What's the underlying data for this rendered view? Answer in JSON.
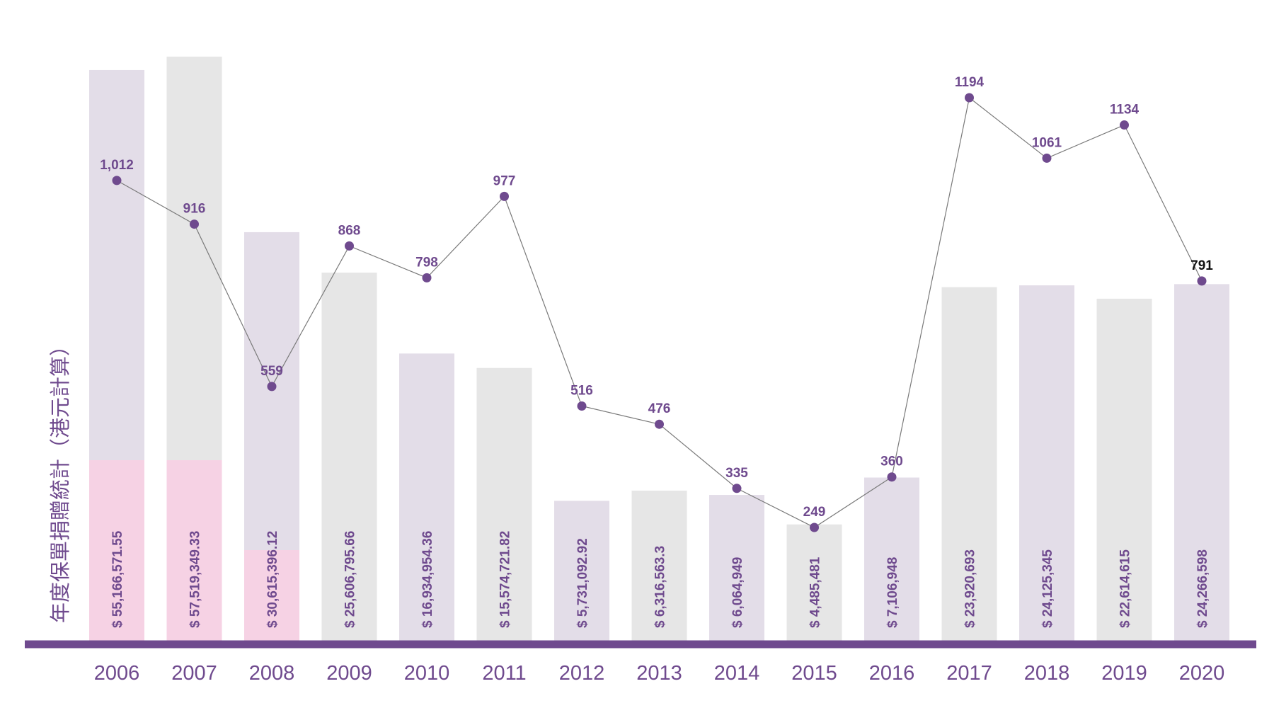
{
  "chart_data": {
    "type": "bar",
    "ylabel": "年度保單捐贈統計（港元計算）",
    "categories": [
      "2006",
      "2007",
      "2008",
      "2009",
      "2010",
      "2011",
      "2012",
      "2013",
      "2014",
      "2015",
      "2016",
      "2017",
      "2018",
      "2019",
      "2020"
    ],
    "series": [
      {
        "type": "bar",
        "values": [
          55166571.55,
          57519349.33,
          30615396.12,
          25606795.66,
          16934954.36,
          15574721.82,
          5731092.92,
          6316563.3,
          6064949,
          4485481,
          7106948,
          23920693,
          24125345,
          22614615,
          24266598
        ],
        "labels": [
          "$ 55,166,571.55",
          "$ 57,519,349.33",
          "$ 30,615,396.12",
          "$ 25,606,795.66",
          "$ 16,934,954.36",
          "$ 15,574,721.82",
          "$ 5,731,092.92",
          "$ 6,316,563.3",
          "$ 6,064,949",
          "$ 4,485,481",
          "$ 7,106,948",
          "$ 23,920,693",
          "$ 24,125,345",
          "$ 22,614,615",
          "$ 24,266,598"
        ]
      },
      {
        "type": "line",
        "values": [
          1012,
          916,
          559,
          868,
          798,
          977,
          516,
          476,
          335,
          249,
          360,
          1194,
          1061,
          1134,
          791
        ],
        "labels": [
          "1,012",
          "916",
          "559",
          "868",
          "798",
          "977",
          "516",
          "476",
          "335",
          "249",
          "360",
          "1194",
          "1061",
          "1134",
          "791"
        ]
      }
    ],
    "bar_fill": [
      "purple",
      "gray",
      "purple",
      "gray",
      "purple",
      "gray",
      "purple",
      "gray",
      "purple",
      "gray",
      "purple",
      "gray",
      "purple",
      "gray",
      "purple"
    ],
    "colors": {
      "purple_bar": "#e3dde8",
      "gray_bar": "#e6e6e6",
      "pink_segment": "#f6d2e4",
      "axis": "#6f4a8e",
      "line": "#7a7a7a",
      "point": "#6f4a8e",
      "year_text": "#6f4a8e",
      "label_text": "#6f4a8e",
      "last_point_label": "#111111"
    },
    "grid": false,
    "legend": "none"
  }
}
